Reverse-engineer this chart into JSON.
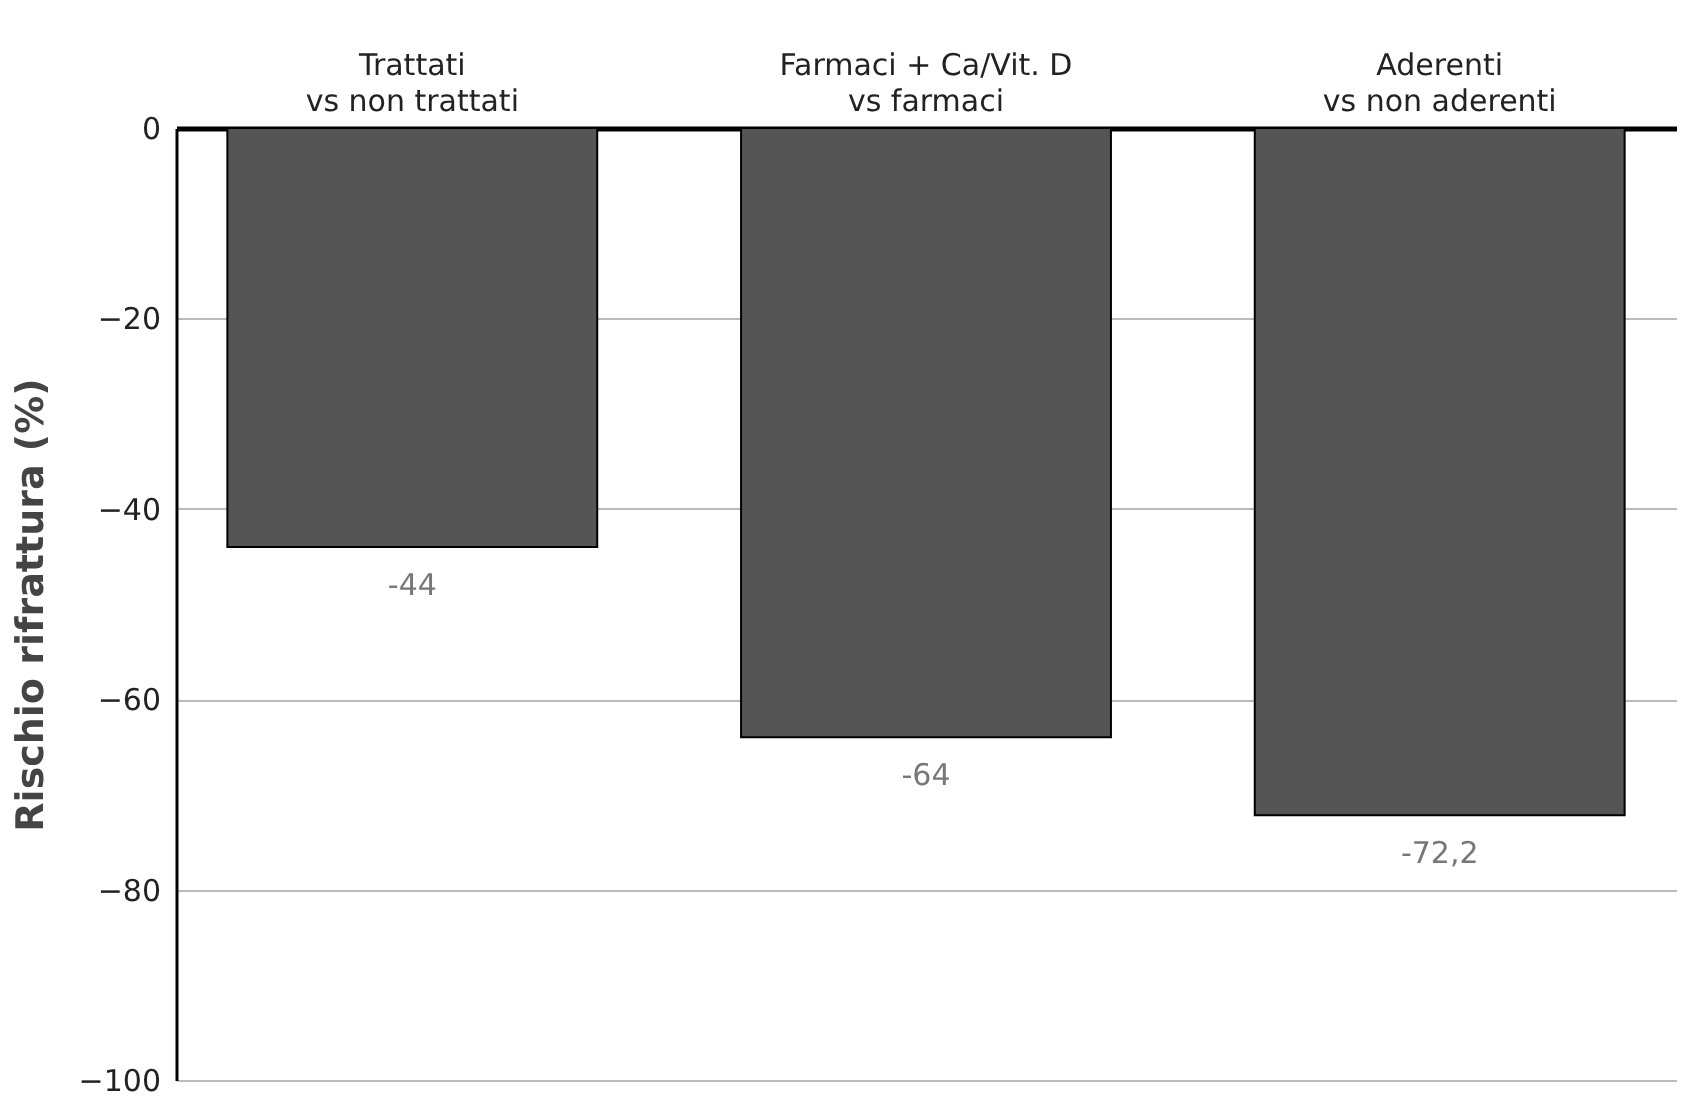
{
  "chart_data": {
    "type": "bar",
    "ylabel": "Rischio rifrattura (%)",
    "categories": [
      "Trattati\nvs non trattati",
      "Farmaci + Ca/Vit. D\nvs farmaci",
      "Aderenti\nvs non aderenti"
    ],
    "values": [
      -44,
      -64,
      -72.2
    ],
    "value_labels": [
      "-44",
      "-64",
      "-72,2"
    ],
    "color": "#555555",
    "ylim": [
      -100,
      0
    ],
    "yticks": [
      -100,
      -80,
      -60,
      -40,
      -20,
      0
    ],
    "grid": "y"
  }
}
